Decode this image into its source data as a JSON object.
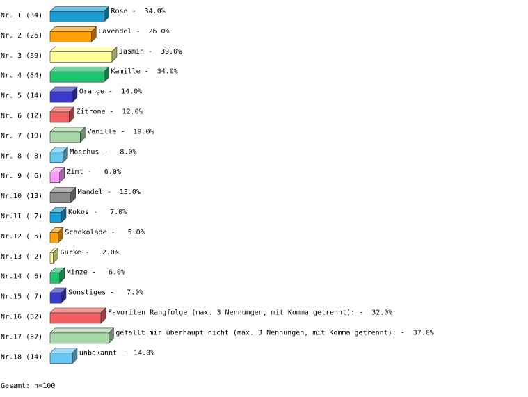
{
  "chart_data": {
    "type": "bar3d",
    "row_labels": [
      "Nr. 1 (34)",
      "Nr. 2 (26)",
      "Nr. 3 (39)",
      "Nr. 4 (34)",
      "Nr. 5 (14)",
      "Nr. 6 (12)",
      "Nr. 7 (19)",
      "Nr. 8 ( 8)",
      "Nr. 9 ( 6)",
      "Nr.10 (13)",
      "Nr.11 ( 7)",
      "Nr.12 ( 5)",
      "Nr.13 ( 2)",
      "Nr.14 ( 6)",
      "Nr.15 ( 7)",
      "Nr.16 (32)",
      "Nr.17 (37)",
      "Nr.18 (14)"
    ],
    "categories": [
      "Rose",
      "Lavendel",
      "Jasmin",
      "Kamille",
      "Orange",
      "Zitrone",
      "Vanille",
      "Moschus",
      "Zimt",
      "Mandel",
      "Kokos",
      "Schokolade",
      "Gurke",
      "Minze",
      "Sonstiges",
      "Favoriten Rangfolge (max. 3 Nennungen, mit Komma getrennt):",
      "gefällt mir überhaupt nicht (max. 3 Nennungen, mit Komma getrennt):",
      "unbekannt"
    ],
    "separator": "-",
    "values": [
      34,
      26,
      39,
      34,
      14,
      12,
      19,
      8,
      6,
      13,
      7,
      5,
      2,
      6,
      7,
      32,
      37,
      14
    ],
    "value_labels": [
      "34.0%",
      "26.0%",
      "39.0%",
      "34.0%",
      "14.0%",
      "12.0%",
      "19.0%",
      "8.0%",
      "6.0%",
      "13.0%",
      "7.0%",
      "5.0%",
      "2.0%",
      "6.0%",
      "7.0%",
      "32.0%",
      "37.0%",
      "14.0%"
    ],
    "colors": [
      "#1a9fd4",
      "#ff9f00",
      "#ffff99",
      "#1ec46e",
      "#3a3acc",
      "#f06060",
      "#a8d8a8",
      "#66c8f0",
      "#ff99ff",
      "#8c8c8c",
      "#1a9fd4",
      "#ff9f00",
      "#ffff99",
      "#1ec46e",
      "#3a3acc",
      "#f06060",
      "#a8d8a8",
      "#66c8f0"
    ],
    "footer": "Gesamt: n=100"
  }
}
